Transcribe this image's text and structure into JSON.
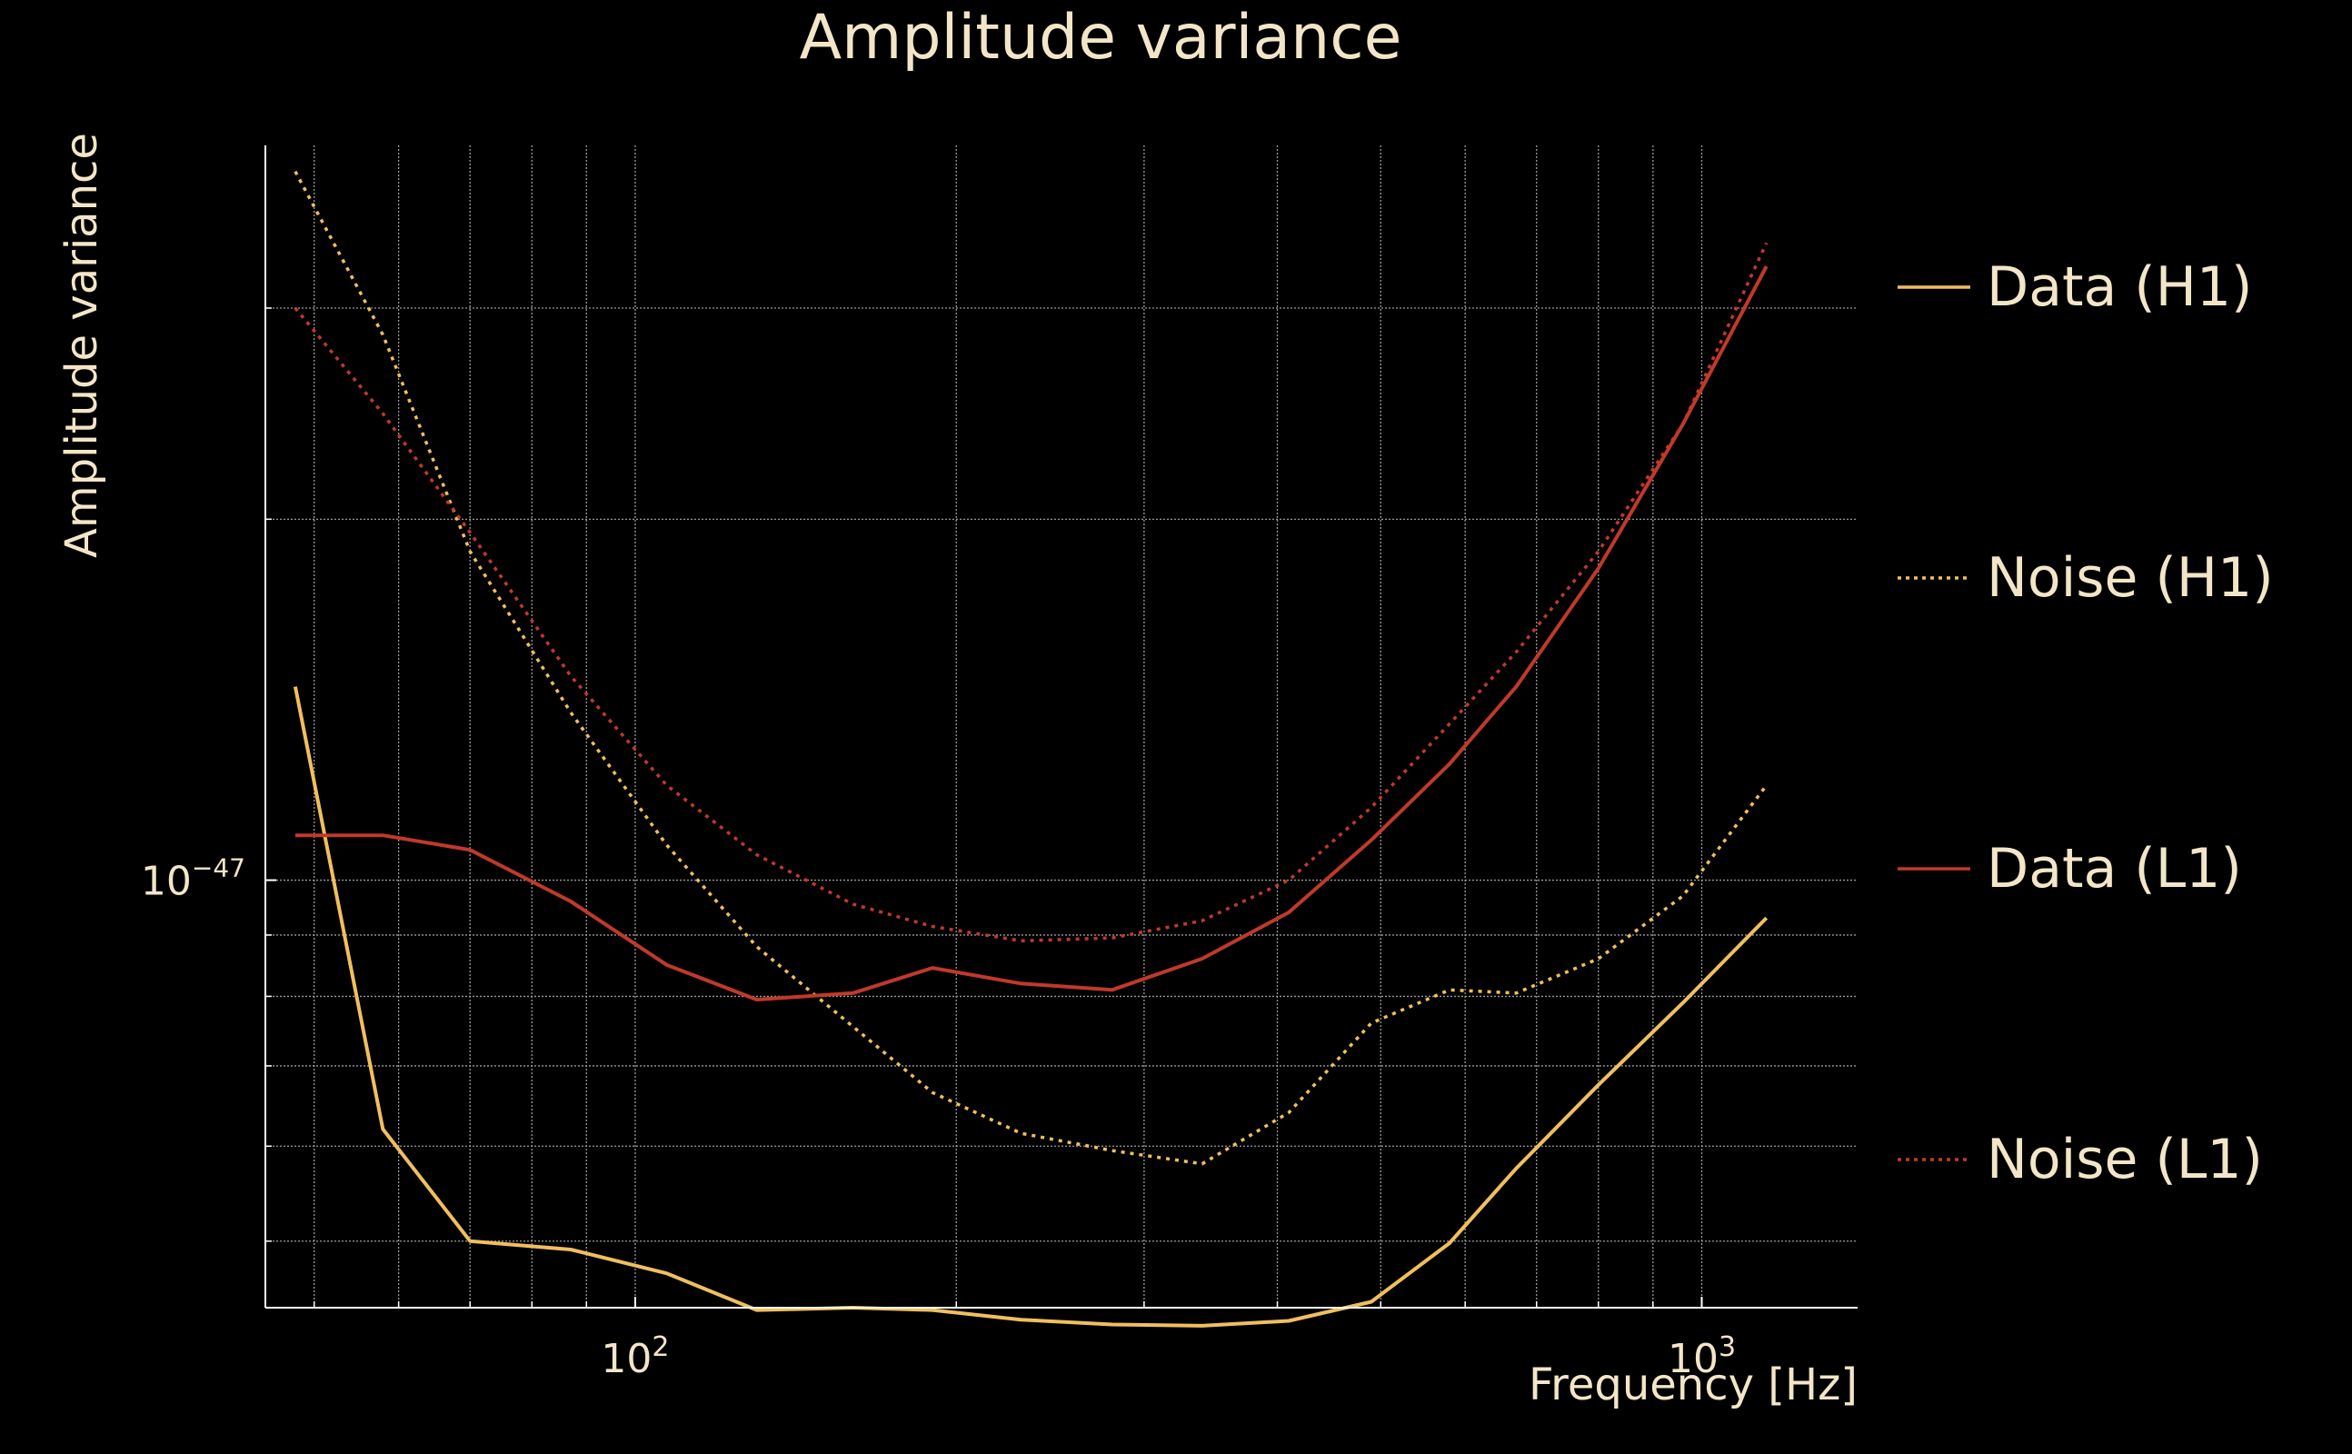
{
  "chart_data": {
    "type": "line",
    "title": "Amplitude variance",
    "xlabel": "Frequency [Hz]",
    "ylabel": "Amplitude variance",
    "xscale": "log",
    "yscale": "log",
    "xlim": [
      45,
      1400
    ],
    "ylim": [
      4.4e-48,
      4.1e-47
    ],
    "grid": true,
    "legend_position": "right",
    "x_tick_labels": [
      {
        "value": 100,
        "base": "10",
        "exp": "2"
      },
      {
        "value": 1000,
        "base": "10",
        "exp": "3"
      }
    ],
    "y_tick_labels": [
      {
        "value": 1e-47,
        "base": "10",
        "exp": "−47"
      }
    ],
    "x_minor_ticks": [
      50,
      60,
      70,
      80,
      90,
      200,
      300,
      400,
      500,
      600,
      700,
      800,
      900
    ],
    "y_minor_ticks": [
      5e-48,
      6e-48,
      7e-48,
      8e-48,
      9e-48,
      2e-47,
      3e-47
    ],
    "x": [
      48,
      58,
      70,
      87,
      107,
      130,
      160,
      190,
      230,
      280,
      340,
      410,
      490,
      580,
      670,
      800,
      960,
      1150
    ],
    "series": [
      {
        "name": "Data (H1)",
        "style": "solid",
        "color": "#f0bf5e",
        "values": [
          1.45e-47,
          6.2e-48,
          5e-48,
          4.92e-48,
          4.7e-48,
          4.38e-48,
          4.4e-48,
          4.38e-48,
          4.3e-48,
          4.26e-48,
          4.25e-48,
          4.29e-48,
          4.45e-48,
          4.98e-48,
          5.75e-48,
          6.75e-48,
          7.9e-48,
          9.3e-48
        ]
      },
      {
        "name": "Noise (H1)",
        "style": "dotted",
        "color": "#f0bf5e",
        "values": [
          3.9e-47,
          2.85e-47,
          1.88e-47,
          1.38e-47,
          1.07e-47,
          8.8e-48,
          7.55e-48,
          6.65e-48,
          6.15e-48,
          5.95e-48,
          5.8e-48,
          6.4e-48,
          7.6e-48,
          8.1e-48,
          8.05e-48,
          8.6e-48,
          9.7e-48,
          1.2e-47
        ]
      },
      {
        "name": "Data (L1)",
        "style": "solid",
        "color": "#c0392b",
        "values": [
          1.09e-47,
          1.09e-47,
          1.06e-47,
          9.6e-48,
          8.5e-48,
          7.95e-48,
          8.05e-48,
          8.45e-48,
          8.2e-48,
          8.1e-48,
          8.6e-48,
          9.4e-48,
          1.08e-47,
          1.25e-47,
          1.45e-47,
          1.82e-47,
          2.4e-47,
          3.25e-47
        ]
      },
      {
        "name": "Noise (L1)",
        "style": "dotted",
        "color": "#c0392b",
        "values": [
          3e-47,
          2.45e-47,
          1.95e-47,
          1.48e-47,
          1.2e-47,
          1.05e-47,
          9.55e-48,
          9.15e-48,
          8.9e-48,
          8.95e-48,
          9.25e-48,
          1e-47,
          1.15e-47,
          1.35e-47,
          1.55e-47,
          1.88e-47,
          2.4e-47,
          3.4e-47
        ]
      }
    ]
  }
}
